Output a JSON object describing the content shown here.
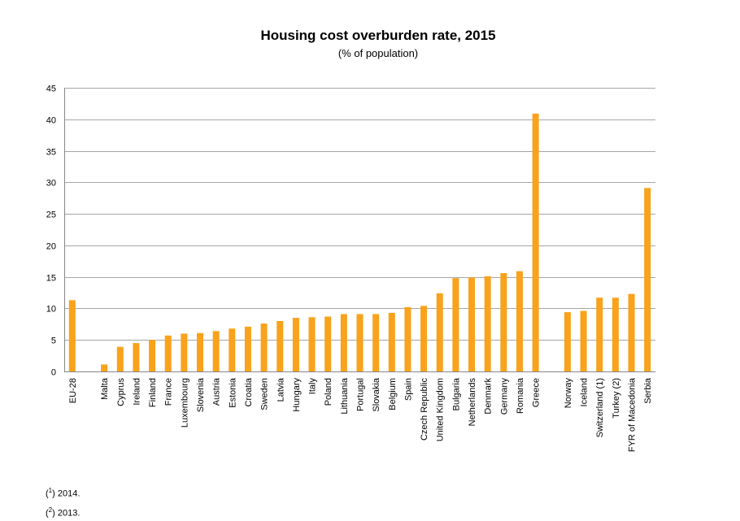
{
  "header": {
    "title": "Housing cost overburden rate, 2015",
    "subtitle": "(% of population)"
  },
  "footnotes": [
    {
      "mark": "1",
      "text": "2014."
    },
    {
      "mark": "2",
      "text": "2013."
    }
  ],
  "colors": {
    "bar": "#F9A21B",
    "grid": "#A6A6A6",
    "axis": "#868686"
  },
  "chart_data": {
    "type": "bar",
    "title": "Housing cost overburden rate, 2015",
    "subtitle": "(% of population)",
    "xlabel": "",
    "ylabel": "",
    "ylim": [
      0,
      45
    ],
    "yticks": [
      0,
      5,
      10,
      15,
      20,
      25,
      30,
      35,
      40,
      45
    ],
    "grid": true,
    "categories": [
      "EU-28",
      "",
      "Malta",
      "Cyprus",
      "Ireland",
      "Finland",
      "France",
      "Luxembourg",
      "Slovenia",
      "Austria",
      "Estonia",
      "Croatia",
      "Sweden",
      "Latvia",
      "Hungary",
      "Italy",
      "Poland",
      "Lithuania",
      "Portugal",
      "Slovakia",
      "Belgium",
      "Spain",
      "Czech Republic",
      "United Kingdom",
      "Bulgaria",
      "Netherlands",
      "Denmark",
      "Germany",
      "Romania",
      "Greece",
      "",
      "Norway",
      "Iceland",
      "Switzerland (1)",
      "Turkey (2)",
      "FYR of Macedonia",
      "Serbia"
    ],
    "values": [
      11.3,
      null,
      1.1,
      3.9,
      4.5,
      5.0,
      5.7,
      6.0,
      6.1,
      6.4,
      6.8,
      7.1,
      7.6,
      8.0,
      8.5,
      8.6,
      8.7,
      9.1,
      9.1,
      9.1,
      9.3,
      10.2,
      10.4,
      12.4,
      14.8,
      14.9,
      15.1,
      15.6,
      15.9,
      40.9,
      null,
      9.4,
      9.6,
      11.7,
      11.7,
      12.3,
      29.1
    ]
  }
}
